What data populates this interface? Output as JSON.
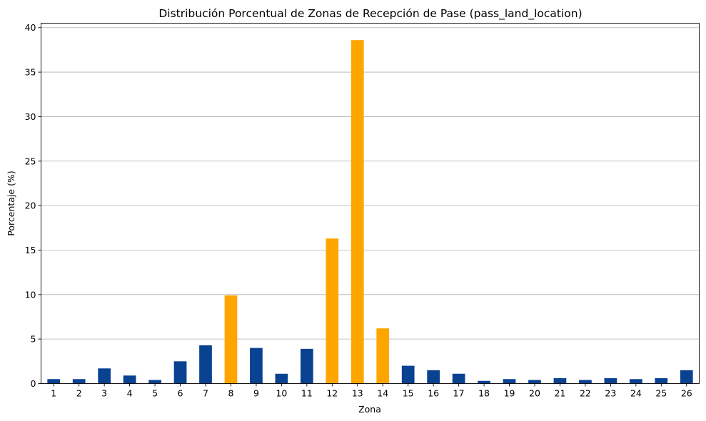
{
  "chart_data": {
    "type": "bar",
    "title": "Distribución Porcentual de Zonas de Recepción de Pase (pass_land_location)",
    "xlabel": "Zona",
    "ylabel": "Porcentaje (%)",
    "ylim": [
      0,
      40.5
    ],
    "yticks": [
      0,
      5,
      10,
      15,
      20,
      25,
      30,
      35,
      40
    ],
    "grid": "y",
    "legend": "none",
    "categories": [
      "1",
      "2",
      "3",
      "4",
      "5",
      "6",
      "7",
      "8",
      "9",
      "10",
      "11",
      "12",
      "13",
      "14",
      "15",
      "16",
      "17",
      "18",
      "19",
      "20",
      "21",
      "22",
      "23",
      "24",
      "25",
      "26"
    ],
    "values": [
      0.5,
      0.5,
      1.7,
      0.9,
      0.4,
      2.5,
      4.3,
      9.9,
      4.0,
      1.1,
      3.9,
      16.3,
      38.6,
      6.2,
      2.0,
      1.5,
      1.1,
      0.3,
      0.5,
      0.4,
      0.6,
      0.4,
      0.6,
      0.5,
      0.6,
      1.5
    ],
    "highlighted": [
      "8",
      "12",
      "13",
      "14"
    ],
    "colors": {
      "default": "#0a4292",
      "highlight": "#ffa500"
    }
  }
}
